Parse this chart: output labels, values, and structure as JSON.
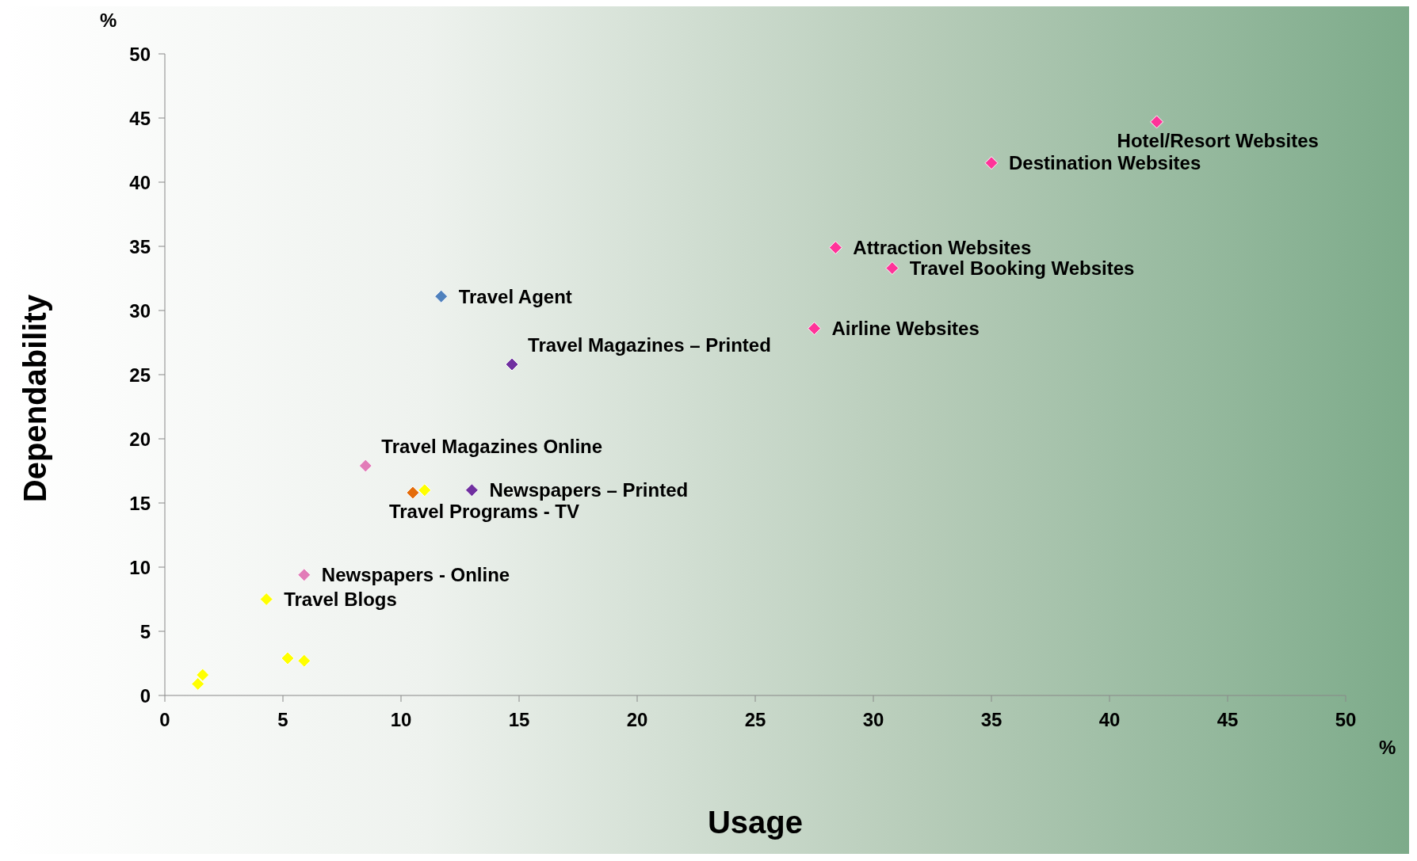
{
  "chart_data": {
    "type": "scatter",
    "xlabel": "Usage",
    "ylabel": "Dependability",
    "x": [
      42,
      35,
      28.4,
      30.8,
      27.5,
      11.7,
      14.7,
      8.5,
      11,
      10.5,
      13,
      5.9,
      4.3,
      5.2,
      5.9,
      1.6,
      1.4
    ],
    "values": [
      44.7,
      41.5,
      34.9,
      33.3,
      28.6,
      31.1,
      25.8,
      17.9,
      16,
      15.8,
      16,
      9.4,
      7.5,
      2.9,
      2.7,
      1.6,
      0.9
    ],
    "colors": [
      "#ff3399",
      "#ff3399",
      "#ff3399",
      "#ff3399",
      "#ff3399",
      "#4f81bd",
      "#7030a0",
      "#e27bb8",
      "#ffff00",
      "#e46c0a",
      "#7030a0",
      "#e27bb8",
      "#ffff00",
      "#ffff00",
      "#ffff00",
      "#ffff00",
      "#ffff00"
    ],
    "marker": "diamond",
    "legend": false,
    "grid": false,
    "xlim": [
      0,
      50
    ],
    "xticks": [
      0,
      5,
      10,
      15,
      20,
      25,
      30,
      35,
      40,
      45,
      50
    ],
    "ylim": [
      0,
      50
    ],
    "yticks": [
      0,
      5,
      10,
      15,
      20,
      25,
      30,
      35,
      40,
      45,
      50
    ],
    "annotations": [
      {
        "text": "Hotel/Resort Websites",
        "x": 42,
        "y": 44.7
      },
      {
        "text": "Destination Websites",
        "x": 35,
        "y": 41.5
      },
      {
        "text": "Attraction Websites",
        "x": 28.4,
        "y": 34.9
      },
      {
        "text": "Travel Booking Websites",
        "x": 30.8,
        "y": 33.3
      },
      {
        "text": "Airline Websites",
        "x": 27.5,
        "y": 28.6
      },
      {
        "text": "Travel Agent",
        "x": 11.7,
        "y": 31.1
      },
      {
        "text": "Travel Magazines – Printed",
        "x": 14.7,
        "y": 25.8
      },
      {
        "text": "Travel Magazines Online",
        "x": 8.5,
        "y": 17.9
      },
      {
        "text": "Travel Programs - TV",
        "x": 10.5,
        "y": 15.8
      },
      {
        "text": "Newspapers – Printed",
        "x": 13,
        "y": 16
      },
      {
        "text": "Newspapers - Online",
        "x": 5.9,
        "y": 9.4
      },
      {
        "text": "Travel Blogs",
        "x": 4.3,
        "y": 7.5
      },
      "%",
      "%"
    ]
  }
}
